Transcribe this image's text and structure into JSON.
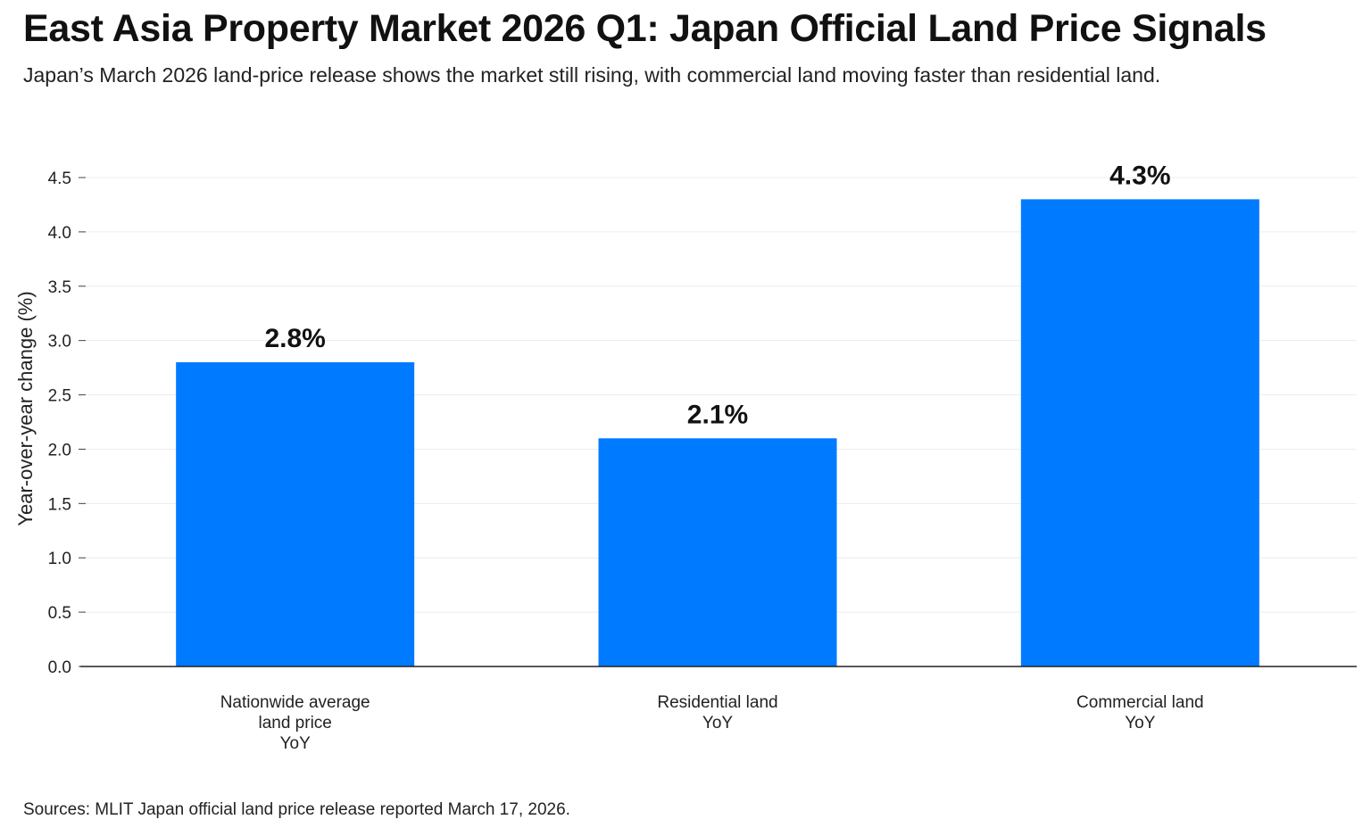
{
  "title": "East Asia Property Market 2026 Q1: Japan Official Land Price Signals",
  "subtitle": "Japan’s March 2026 land-price release shows the market still rising, with commercial land moving faster than residential land.",
  "source": "Sources: MLIT Japan official land price release reported March 17, 2026.",
  "chart_data": {
    "type": "bar",
    "categories": [
      [
        "Nationwide average",
        "land price",
        "YoY"
      ],
      [
        "Residential land",
        "YoY"
      ],
      [
        "Commercial land",
        "YoY"
      ]
    ],
    "values": [
      2.8,
      2.1,
      4.3
    ],
    "data_labels": [
      "2.8%",
      "2.1%",
      "4.3%"
    ],
    "ylabel": "Year-over-year change (%)",
    "xlabel": "",
    "ylim": [
      0,
      4.5
    ],
    "yticks": [
      "0.0",
      "0.5",
      "1.0",
      "1.5",
      "2.0",
      "2.5",
      "3.0",
      "3.5",
      "4.0",
      "4.5"
    ],
    "bar_color": "#007bff",
    "grid": "horizontal"
  }
}
